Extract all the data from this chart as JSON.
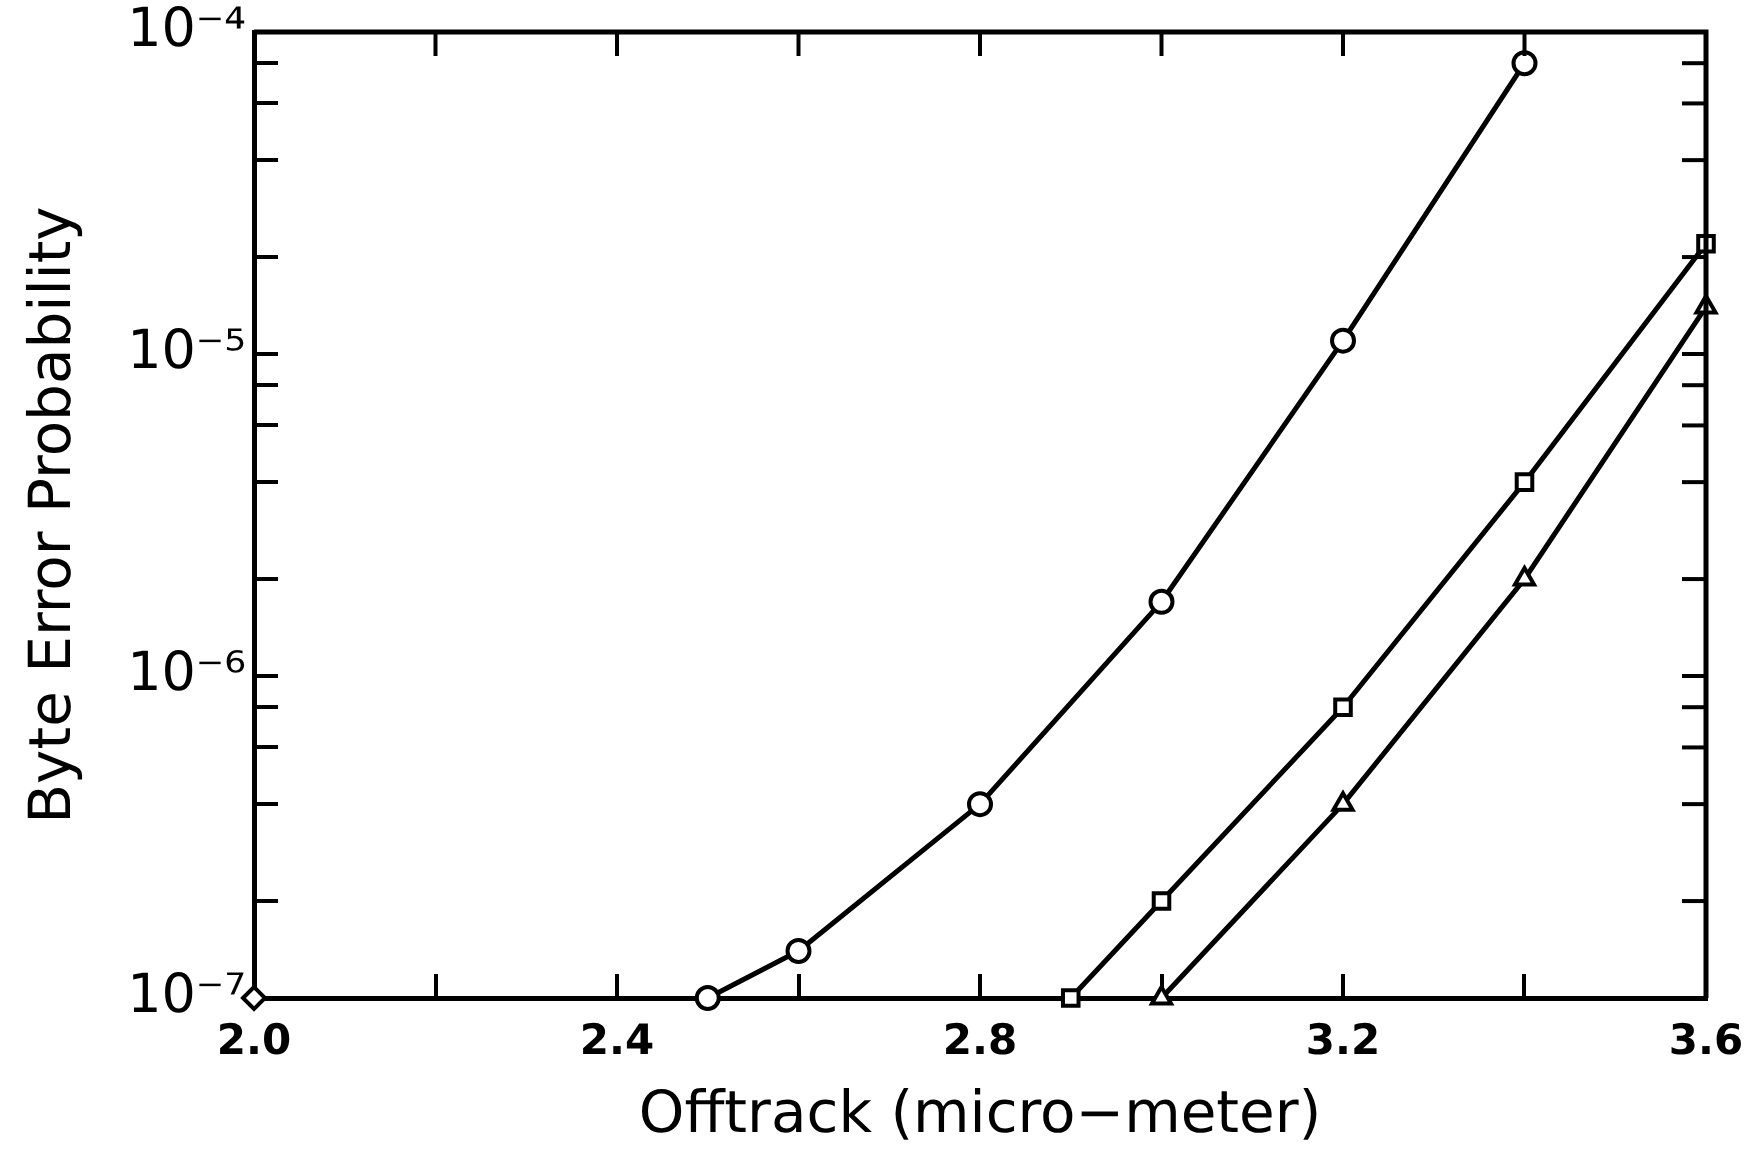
{
  "chart_data": {
    "type": "line",
    "xlabel": "Offtrack (micro−meter)",
    "ylabel": "Byte Error Probability",
    "log": "y",
    "xlim": [
      2.0,
      3.6
    ],
    "ylim": [
      1e-07,
      0.0001
    ],
    "xticks": [
      {
        "value": 2.0,
        "label": "2.0"
      },
      {
        "value": 2.2,
        "label": null
      },
      2.4,
      {
        "value": 2.6,
        "label": null
      },
      2.8,
      {
        "value": 3.0,
        "label": null
      },
      3.2,
      {
        "value": 3.4,
        "label": null
      },
      3.6
    ],
    "yticks": [
      {
        "value": 1e-07,
        "label": "10⁻⁷"
      },
      {
        "value": 2e-07,
        "label": null
      },
      {
        "value": 4e-07,
        "label": null
      },
      {
        "value": 6e-07,
        "label": null
      },
      {
        "value": 8e-07,
        "label": null
      },
      {
        "value": 1e-06,
        "label": "10⁻⁶"
      },
      {
        "value": 2e-06,
        "label": null
      },
      {
        "value": 4e-06,
        "label": null
      },
      {
        "value": 6e-06,
        "label": null
      },
      {
        "value": 8e-06,
        "label": null
      },
      {
        "value": 1e-05,
        "label": "10⁻⁵"
      },
      {
        "value": 2e-05,
        "label": null
      },
      {
        "value": 4e-05,
        "label": null
      },
      {
        "value": 6e-05,
        "label": null
      },
      {
        "value": 8e-05,
        "label": null
      },
      {
        "value": 0.0001,
        "label": "10⁻⁴"
      }
    ],
    "series": [
      {
        "color": "#000000",
        "marker": "circle",
        "x": [
          2.5,
          2.6,
          2.8,
          3.0,
          3.2,
          3.4
        ],
        "values": [
          1e-07,
          1.4e-07,
          4e-07,
          1.7e-06,
          1.1e-05,
          8e-05
        ]
      },
      {
        "color": "#000000",
        "marker": "square",
        "x": [
          2.9,
          3.0,
          3.2,
          3.4,
          3.6
        ],
        "values": [
          1e-07,
          2e-07,
          8e-07,
          4e-06,
          2.2e-05
        ]
      },
      {
        "color": "#000000",
        "marker": "triangle",
        "x": [
          3.0,
          3.2,
          3.4,
          3.6
        ],
        "values": [
          1e-07,
          4e-07,
          2e-06,
          1.4e-05
        ]
      },
      {
        "type": "scatter",
        "color": "#000000",
        "marker": "diamond",
        "x": [
          2.0
        ],
        "values": [
          1e-07
        ]
      }
    ]
  }
}
